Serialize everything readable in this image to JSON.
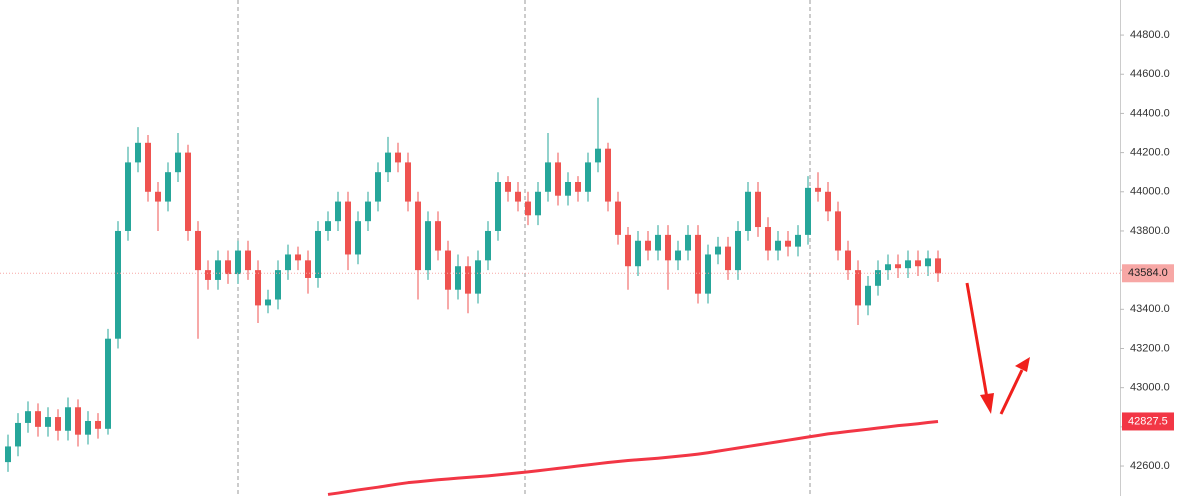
{
  "chart_data": {
    "type": "candlestick",
    "open": [
      42620,
      42700,
      42820,
      42880,
      42800,
      42850,
      42780,
      42900,
      42760,
      42830,
      42790,
      43250,
      43800,
      44150,
      44250,
      44000,
      43950,
      44100,
      44200,
      43800,
      43600,
      43550,
      43650,
      43580,
      43700,
      43600,
      43420,
      43450,
      43600,
      43680,
      43650,
      43560,
      43800,
      43850,
      43950,
      43680,
      43850,
      43950,
      44100,
      44200,
      44150,
      43950,
      43600,
      43850,
      43700,
      43500,
      43620,
      43480,
      43650,
      43800,
      44050,
      44000,
      43950,
      43880,
      44000,
      44150,
      43980,
      44050,
      44000,
      44150,
      44220,
      43950,
      43780,
      43620,
      43750,
      43700,
      43780,
      43650,
      43700,
      43780,
      43480,
      43680,
      43720,
      43600,
      43800,
      44000,
      43820,
      43700,
      43750,
      43720,
      43780,
      44020,
      44000,
      43900,
      43700,
      43600,
      43420,
      43520,
      43600,
      43630,
      43610,
      43650,
      43620,
      43660
    ],
    "high": [
      42760,
      42870,
      42930,
      42920,
      42900,
      42890,
      42950,
      42940,
      42880,
      42870,
      43300,
      43850,
      44230,
      44330,
      44290,
      44050,
      44150,
      44300,
      44240,
      43850,
      43650,
      43700,
      43700,
      43750,
      43750,
      43650,
      43500,
      43650,
      43730,
      43720,
      43700,
      43850,
      43900,
      44000,
      44000,
      43900,
      44000,
      44150,
      44280,
      44250,
      44200,
      44000,
      43900,
      43900,
      43750,
      43680,
      43670,
      43700,
      43850,
      44100,
      44080,
      44050,
      44000,
      44050,
      44300,
      44200,
      44100,
      44080,
      44200,
      44480,
      44250,
      44000,
      43820,
      43800,
      43800,
      43830,
      43830,
      43750,
      43830,
      43830,
      43730,
      43770,
      43770,
      43850,
      44050,
      44050,
      43870,
      43800,
      43800,
      43830,
      44080,
      44100,
      44050,
      43950,
      43750,
      43650,
      43570,
      43650,
      43680,
      43680,
      43700,
      43700,
      43700,
      43700
    ],
    "low": [
      42570,
      42650,
      42770,
      42750,
      42750,
      42730,
      42730,
      42700,
      42710,
      42740,
      42760,
      43200,
      43750,
      44100,
      43950,
      43800,
      43900,
      44050,
      43750,
      43250,
      43500,
      43500,
      43530,
      43530,
      43550,
      43330,
      43380,
      43400,
      43550,
      43600,
      43480,
      43510,
      43750,
      43800,
      43600,
      43630,
      43800,
      43900,
      44050,
      44100,
      43900,
      43450,
      43550,
      43650,
      43400,
      43450,
      43380,
      43430,
      43600,
      43750,
      43950,
      43900,
      43830,
      43830,
      43950,
      43930,
      43930,
      43950,
      43950,
      44100,
      43900,
      43730,
      43500,
      43570,
      43650,
      43650,
      43500,
      43600,
      43650,
      43430,
      43430,
      43630,
      43550,
      43550,
      43750,
      43770,
      43650,
      43650,
      43670,
      43670,
      43730,
      43950,
      43850,
      43650,
      43550,
      43320,
      43370,
      43470,
      43550,
      43560,
      43560,
      43570,
      43570,
      43540
    ],
    "close": [
      42700,
      42820,
      42880,
      42800,
      42850,
      42780,
      42900,
      42760,
      42830,
      42790,
      43250,
      43800,
      44150,
      44250,
      44000,
      43950,
      44100,
      44200,
      43800,
      43600,
      43550,
      43650,
      43580,
      43700,
      43600,
      43420,
      43450,
      43600,
      43680,
      43650,
      43560,
      43800,
      43850,
      43950,
      43680,
      43850,
      43950,
      44100,
      44200,
      44150,
      43950,
      43600,
      43850,
      43700,
      43500,
      43620,
      43480,
      43650,
      43800,
      44050,
      44000,
      43950,
      43880,
      44000,
      44150,
      43980,
      44050,
      44000,
      44150,
      44220,
      43950,
      43780,
      43620,
      43750,
      43700,
      43780,
      43650,
      43700,
      43780,
      43480,
      43680,
      43720,
      43600,
      43800,
      44000,
      43820,
      43700,
      43750,
      43720,
      43780,
      44020,
      44000,
      43900,
      43700,
      43600,
      43420,
      43520,
      43600,
      43630,
      43610,
      43650,
      43620,
      43660,
      43584
    ],
    "up_color": "#26a69a",
    "down_color": "#ef5350",
    "moving_average": {
      "color": "#f23645",
      "values": [
        null,
        null,
        null,
        null,
        null,
        null,
        null,
        null,
        null,
        null,
        null,
        null,
        null,
        null,
        null,
        null,
        null,
        null,
        null,
        null,
        null,
        null,
        null,
        null,
        null,
        null,
        null,
        null,
        null,
        null,
        null,
        null,
        42455,
        42462,
        42470,
        42478,
        42485,
        42492,
        42500,
        42508,
        42515,
        42520,
        42525,
        42530,
        42534,
        42538,
        42542,
        42546,
        42550,
        42555,
        42560,
        42565,
        42570,
        42576,
        42582,
        42588,
        42594,
        42600,
        42606,
        42612,
        42618,
        42623,
        42628,
        42632,
        42636,
        42640,
        42645,
        42650,
        42655,
        42661,
        42668,
        42676,
        42684,
        42692,
        42700,
        42708,
        42716,
        42724,
        42732,
        42740,
        42748,
        42756,
        42764,
        42770,
        42776,
        42782,
        42788,
        42794,
        42800,
        42806,
        42811,
        42816,
        42822,
        42827.5
      ]
    },
    "price_labels": [
      {
        "value": 43584,
        "label": "43584.0",
        "color": "#f7a7a5"
      },
      {
        "value": 42827.5,
        "label": "42827.5",
        "color": "#f23645"
      }
    ],
    "ylim": [
      42447,
      44979
    ],
    "yticks": [
      {
        "value": 42600,
        "label": "42600.0"
      },
      {
        "value": 42800,
        "label": "42800.0"
      },
      {
        "value": 43000,
        "label": "43000.0"
      },
      {
        "value": 43200,
        "label": "43200.0"
      },
      {
        "value": 43400,
        "label": "43400.0"
      },
      {
        "value": 43600,
        "label": "43600.0"
      },
      {
        "value": 43800,
        "label": "43800.0"
      },
      {
        "value": 44000,
        "label": "44000.0"
      },
      {
        "value": 44200,
        "label": "44200.0"
      },
      {
        "value": 44400,
        "label": "44400.0"
      },
      {
        "value": 44600,
        "label": "44600.0"
      },
      {
        "value": 44800,
        "label": "44800.0"
      }
    ]
  }
}
